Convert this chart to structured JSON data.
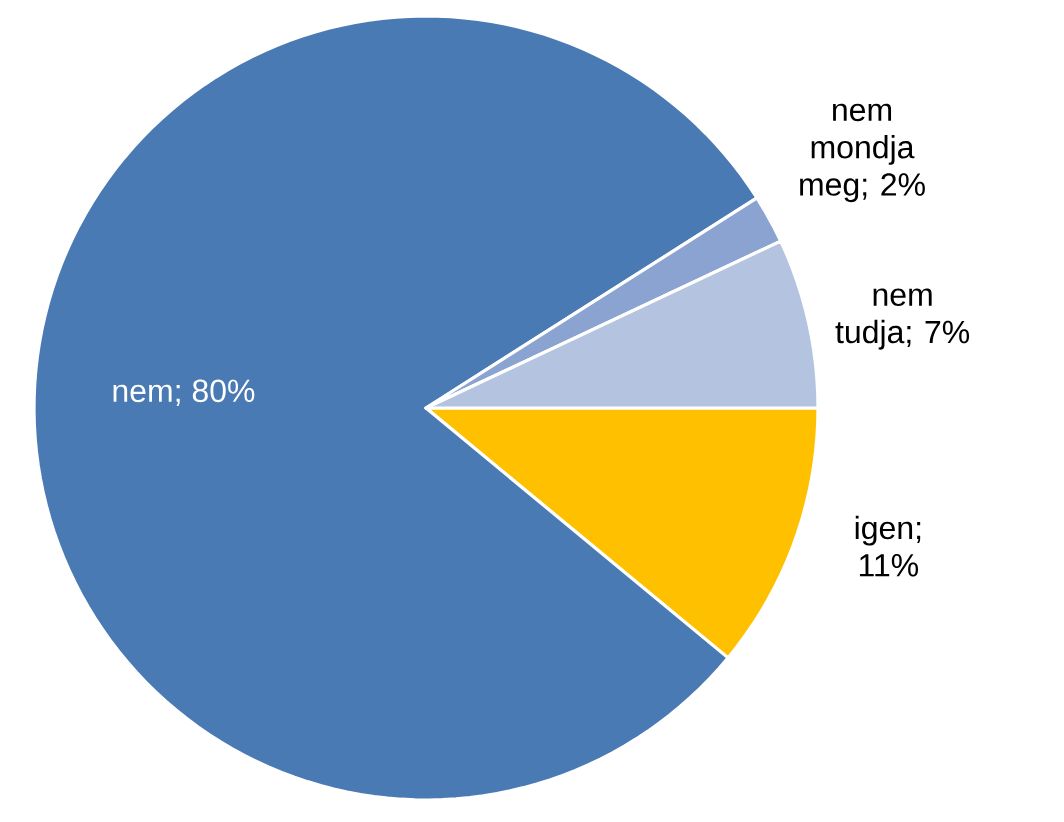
{
  "chart_data": {
    "type": "pie",
    "categories": [
      "igen",
      "nem",
      "nem mondja meg",
      "nem tudja"
    ],
    "values": [
      11,
      80,
      2,
      7
    ],
    "value_labels": [
      "; 11%",
      "; 80%",
      "; 2%",
      "; 7%"
    ],
    "colors": [
      "#ffc000",
      "#4a7ab4",
      "#8aa3d0",
      "#b4c3df"
    ]
  }
}
